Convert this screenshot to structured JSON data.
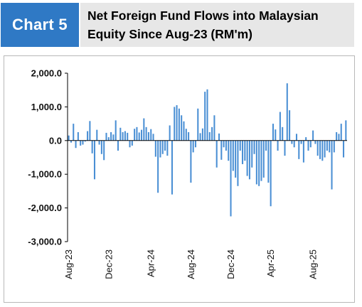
{
  "header": {
    "badge_label": "Chart 5",
    "title_line1": "Net Foreign Fund Flows into Malaysian",
    "title_line2": "Equity Since Aug-23 (RM'm)"
  },
  "colors": {
    "badge_bg": "#2f79c5",
    "bar": "#4a8fd4",
    "axis": "#000000"
  },
  "chart_data": {
    "type": "bar",
    "title": "Net Foreign Fund Flows into Malaysian Equity Since Aug-23 (RM'm)",
    "xlabel": "",
    "ylabel": "",
    "ylim": [
      -3000,
      2000
    ],
    "yticks": [
      2000,
      1000,
      0,
      -1000,
      -2000,
      -3000
    ],
    "ytick_labels": [
      "2,000.0",
      "1,000.0",
      "0.0",
      "-1,000.0",
      "-2,000.0",
      "-3,000.0"
    ],
    "xtick_labels": [
      "Aug-23",
      "Dec-23",
      "Apr-24",
      "Aug-24",
      "Dec-24",
      "Apr-25",
      "Aug-25"
    ],
    "xtick_positions": [
      0,
      17,
      35,
      52,
      69,
      86,
      104
    ],
    "grid": false,
    "legend": "none",
    "series": [
      {
        "values": [
          150,
          -60,
          500,
          -220,
          250,
          -150,
          -120,
          -30,
          280,
          580,
          -380,
          -1150,
          320,
          -120,
          -400,
          -580,
          230,
          100,
          250,
          180,
          600,
          -300,
          380,
          250,
          280,
          230,
          -200,
          -150,
          350,
          400,
          240,
          320,
          660,
          400,
          250,
          340,
          200,
          -480,
          -1550,
          -500,
          -400,
          -300,
          -450,
          450,
          -1600,
          1000,
          1050,
          950,
          750,
          570,
          350,
          250,
          -1250,
          -350,
          -200,
          950,
          220,
          360,
          1450,
          1520,
          250,
          400,
          750,
          -800,
          210,
          -570,
          -200,
          -300,
          -600,
          -2250,
          -900,
          -1100,
          -1350,
          -300,
          -700,
          -600,
          -1050,
          -1150,
          -800,
          -400,
          -1300,
          -1350,
          -1200,
          -1100,
          -300,
          -1250,
          -1950,
          500,
          330,
          -300,
          850,
          400,
          -450,
          1700,
          900,
          -100,
          -200,
          200,
          -550,
          -100,
          -650,
          100,
          -300,
          -200,
          300,
          -100,
          -450,
          -550,
          -600,
          -500,
          -300,
          -350,
          -1450,
          -350,
          250,
          200,
          500,
          -500,
          600
        ]
      }
    ]
  }
}
